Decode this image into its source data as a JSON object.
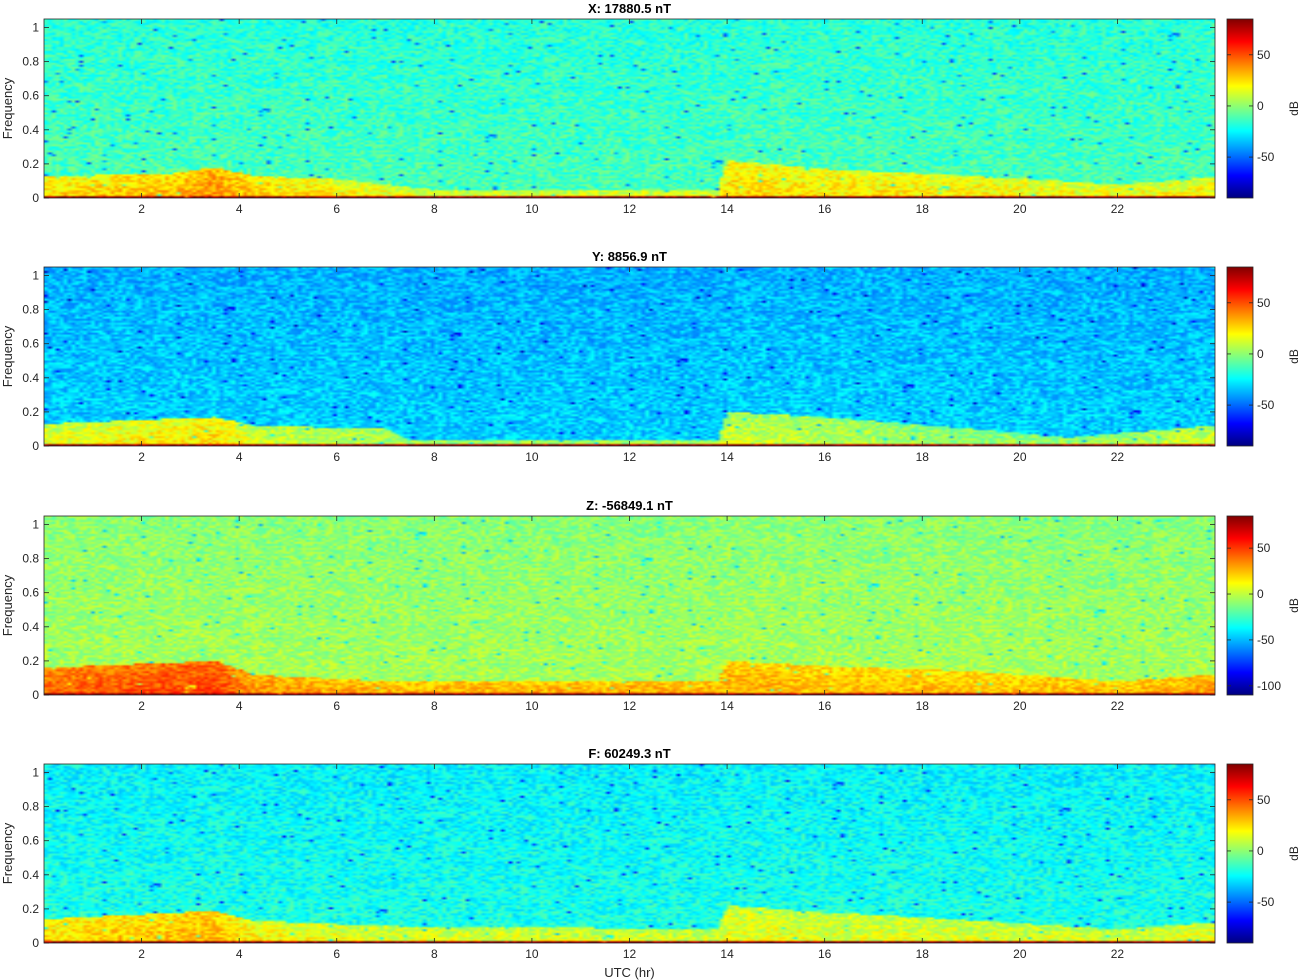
{
  "chart_data": [
    {
      "type": "heatmap",
      "title": "X: 17880.5 nT",
      "xlabel": "",
      "ylabel": "Frequency",
      "xlim": [
        0,
        24
      ],
      "ylim": [
        0,
        1.05
      ],
      "xticks": [
        "2",
        "4",
        "6",
        "8",
        "10",
        "12",
        "14",
        "16",
        "18",
        "20",
        "22"
      ],
      "yticks": [
        "0",
        "0.2",
        "0.4",
        "0.6",
        "0.8",
        "1"
      ],
      "colorbar": {
        "label": "dB",
        "range": [
          -90,
          85
        ],
        "ticks": [
          "-50",
          "0",
          "50"
        ]
      },
      "background_db": -12,
      "low_freq_band": [
        {
          "x": 0,
          "y_top": 0.13,
          "db": 22
        },
        {
          "x": 2.5,
          "y_top": 0.14,
          "db": 28
        },
        {
          "x": 3.5,
          "y_top": 0.18,
          "db": 35
        },
        {
          "x": 4.3,
          "y_top": 0.13,
          "db": 25
        },
        {
          "x": 6,
          "y_top": 0.11,
          "db": 18
        },
        {
          "x": 8,
          "y_top": 0.05,
          "db": 12
        },
        {
          "x": 12,
          "y_top": 0.05,
          "db": 12
        },
        {
          "x": 13.8,
          "y_top": 0.05,
          "db": 12
        },
        {
          "x": 14.0,
          "y_top": 0.22,
          "db": 22
        },
        {
          "x": 16,
          "y_top": 0.17,
          "db": 20
        },
        {
          "x": 19,
          "y_top": 0.13,
          "db": 18
        },
        {
          "x": 22,
          "y_top": 0.08,
          "db": 15
        },
        {
          "x": 24,
          "y_top": 0.12,
          "db": 18
        }
      ],
      "dc_line_db": 80
    },
    {
      "type": "heatmap",
      "title": "Y: 8856.9 nT",
      "xlabel": "",
      "ylabel": "Frequency",
      "xlim": [
        0,
        24
      ],
      "ylim": [
        0,
        1.05
      ],
      "xticks": [
        "2",
        "4",
        "6",
        "8",
        "10",
        "12",
        "14",
        "16",
        "18",
        "20",
        "22"
      ],
      "yticks": [
        "0",
        "0.2",
        "0.4",
        "0.6",
        "0.8",
        "1"
      ],
      "colorbar": {
        "label": "dB",
        "range": [
          -90,
          85
        ],
        "ticks": [
          "-50",
          "0",
          "50"
        ]
      },
      "background_db": -32,
      "low_freq_band": [
        {
          "x": 0,
          "y_top": 0.13,
          "db": 12
        },
        {
          "x": 3.5,
          "y_top": 0.17,
          "db": 22
        },
        {
          "x": 4.3,
          "y_top": 0.12,
          "db": 10
        },
        {
          "x": 7,
          "y_top": 0.1,
          "db": 5
        },
        {
          "x": 7.5,
          "y_top": 0.03,
          "db": 5
        },
        {
          "x": 13.8,
          "y_top": 0.03,
          "db": 5
        },
        {
          "x": 14.0,
          "y_top": 0.2,
          "db": 8
        },
        {
          "x": 16,
          "y_top": 0.17,
          "db": 5
        },
        {
          "x": 19,
          "y_top": 0.1,
          "db": 0
        },
        {
          "x": 21,
          "y_top": 0.05,
          "db": 0
        },
        {
          "x": 24,
          "y_top": 0.12,
          "db": 10
        }
      ],
      "dc_line_db": 80
    },
    {
      "type": "heatmap",
      "title": "Z: -56849.1 nT",
      "xlabel": "",
      "ylabel": "Frequency",
      "xlim": [
        0,
        24
      ],
      "ylim": [
        0,
        1.05
      ],
      "xticks": [
        "2",
        "4",
        "6",
        "8",
        "10",
        "12",
        "14",
        "16",
        "18",
        "20",
        "22"
      ],
      "yticks": [
        "0",
        "0.2",
        "0.4",
        "0.6",
        "0.8",
        "1"
      ],
      "colorbar": {
        "label": "dB",
        "range": [
          -110,
          85
        ],
        "ticks": [
          "-100",
          "-50",
          "0",
          "50"
        ]
      },
      "background_db": -5,
      "low_freq_band": [
        {
          "x": 0,
          "y_top": 0.16,
          "db": 38
        },
        {
          "x": 3.5,
          "y_top": 0.2,
          "db": 45
        },
        {
          "x": 4.3,
          "y_top": 0.12,
          "db": 30
        },
        {
          "x": 7,
          "y_top": 0.08,
          "db": 25
        },
        {
          "x": 13.8,
          "y_top": 0.08,
          "db": 25
        },
        {
          "x": 14.0,
          "y_top": 0.2,
          "db": 25
        },
        {
          "x": 16,
          "y_top": 0.17,
          "db": 22
        },
        {
          "x": 19,
          "y_top": 0.14,
          "db": 22
        },
        {
          "x": 22,
          "y_top": 0.08,
          "db": 22
        },
        {
          "x": 24,
          "y_top": 0.12,
          "db": 28
        }
      ],
      "dc_line_db": 80
    },
    {
      "type": "heatmap",
      "title": "F: 60249.3 nT",
      "xlabel": "UTC (hr)",
      "ylabel": "Frequency",
      "xlim": [
        0,
        24
      ],
      "ylim": [
        0,
        1.05
      ],
      "xticks": [
        "2",
        "4",
        "6",
        "8",
        "10",
        "12",
        "14",
        "16",
        "18",
        "20",
        "22"
      ],
      "yticks": [
        "0",
        "0.2",
        "0.4",
        "0.6",
        "0.8",
        "1"
      ],
      "colorbar": {
        "label": "dB",
        "range": [
          -90,
          85
        ],
        "ticks": [
          "-50",
          "0",
          "50"
        ]
      },
      "background_db": -20,
      "low_freq_band": [
        {
          "x": 0,
          "y_top": 0.14,
          "db": 22
        },
        {
          "x": 3.5,
          "y_top": 0.19,
          "db": 30
        },
        {
          "x": 4.3,
          "y_top": 0.13,
          "db": 18
        },
        {
          "x": 7,
          "y_top": 0.1,
          "db": 12
        },
        {
          "x": 13.8,
          "y_top": 0.08,
          "db": 10
        },
        {
          "x": 14.0,
          "y_top": 0.22,
          "db": 14
        },
        {
          "x": 16,
          "y_top": 0.18,
          "db": 12
        },
        {
          "x": 18,
          "y_top": 0.15,
          "db": 12
        },
        {
          "x": 22,
          "y_top": 0.08,
          "db": 10
        },
        {
          "x": 24,
          "y_top": 0.12,
          "db": 14
        }
      ],
      "dc_line_db": 80
    }
  ]
}
